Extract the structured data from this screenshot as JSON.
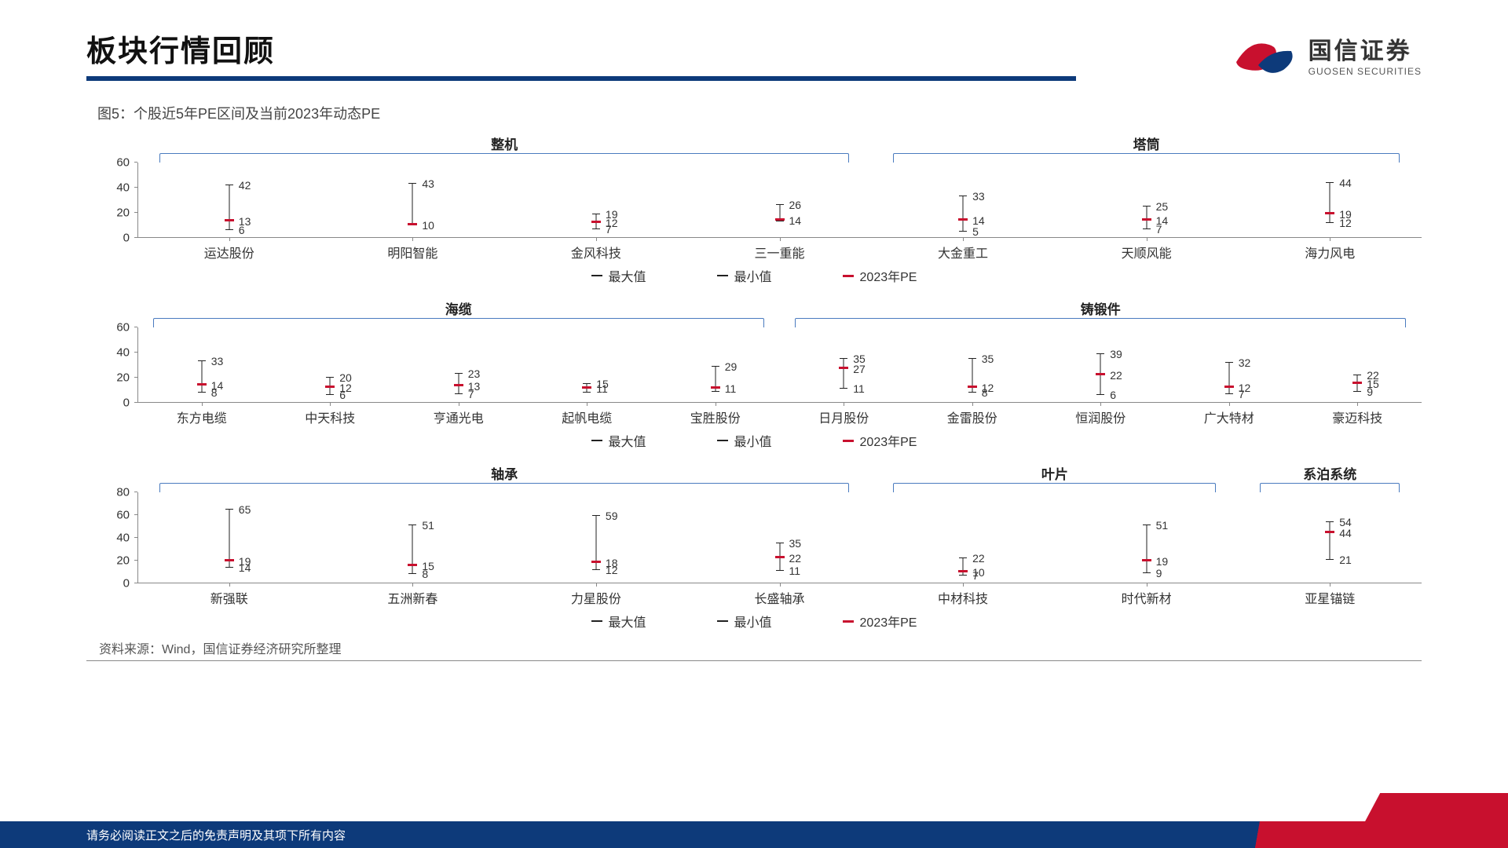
{
  "meta": {
    "title": "板块行情回顾",
    "subtitle": "图5：个股近5年PE区间及当前2023年动态PE",
    "source": "资料来源：Wind，国信证券经济研究所整理",
    "footer": "请务必阅读正文之后的免责声明及其项下所有内容",
    "brand_cn": "国信证券",
    "brand_en": "GUOSEN SECURITIES",
    "colors": {
      "accent": "#0d3a7a",
      "pe": "#c8102e",
      "axis": "#888888"
    }
  },
  "legend": {
    "max": "最大值",
    "min": "最小值",
    "pe": "2023年PE"
  },
  "panels": [
    {
      "ylim": [
        0,
        60
      ],
      "ytick_step": 20,
      "tall": false,
      "groups": [
        {
          "label": "整机",
          "from": 0,
          "to": 3
        },
        {
          "label": "塔筒",
          "from": 4,
          "to": 6
        }
      ],
      "stocks": [
        {
          "name": "运达股份",
          "max": 42,
          "min": 6,
          "pe": 13
        },
        {
          "name": "明阳智能",
          "max": 43,
          "min": 10,
          "pe": 10,
          "min_hidden": true
        },
        {
          "name": "金风科技",
          "max": 19,
          "min": 7,
          "pe": 12
        },
        {
          "name": "三一重能",
          "max": 26,
          "min": 13,
          "pe": 14,
          "min_hidden": true
        },
        {
          "name": "大金重工",
          "max": 33,
          "min": 5,
          "pe": 14
        },
        {
          "name": "天顺风能",
          "max": 25,
          "min": 7,
          "pe": 14
        },
        {
          "name": "海力风电",
          "max": 44,
          "min": 12,
          "pe": 19
        }
      ]
    },
    {
      "ylim": [
        0,
        60
      ],
      "ytick_step": 20,
      "tall": false,
      "groups": [
        {
          "label": "海缆",
          "from": 0,
          "to": 4
        },
        {
          "label": "铸锻件",
          "from": 5,
          "to": 9
        }
      ],
      "stocks": [
        {
          "name": "东方电缆",
          "max": 33,
          "min": 8,
          "pe": 14
        },
        {
          "name": "中天科技",
          "max": 20,
          "min": 6,
          "pe": 12
        },
        {
          "name": "亨通光电",
          "max": 23,
          "min": 7,
          "pe": 13
        },
        {
          "name": "起帆电缆",
          "max": 15,
          "min": 8,
          "pe": 11,
          "min_hidden": true
        },
        {
          "name": "宝胜股份",
          "max": 29,
          "min": 9,
          "pe": 11,
          "min_hidden": true
        },
        {
          "name": "日月股份",
          "max": 35,
          "min": 11,
          "pe": 27
        },
        {
          "name": "金雷股份",
          "max": 35,
          "min": 8,
          "pe": 12
        },
        {
          "name": "恒润股份",
          "max": 39,
          "min": 6,
          "pe": 22
        },
        {
          "name": "广大特材",
          "max": 32,
          "min": 7,
          "pe": 12
        },
        {
          "name": "豪迈科技",
          "max": 22,
          "min": 9,
          "pe": 15
        }
      ]
    },
    {
      "ylim": [
        0,
        80
      ],
      "ytick_step": 20,
      "tall": true,
      "groups": [
        {
          "label": "轴承",
          "from": 0,
          "to": 3
        },
        {
          "label": "叶片",
          "from": 4,
          "to": 5
        },
        {
          "label": "系泊系统",
          "from": 6,
          "to": 6
        }
      ],
      "stocks": [
        {
          "name": "新强联",
          "max": 65,
          "min": 14,
          "pe": 19
        },
        {
          "name": "五洲新春",
          "max": 51,
          "min": 8,
          "pe": 15
        },
        {
          "name": "力星股份",
          "max": 59,
          "min": 12,
          "pe": 18
        },
        {
          "name": "长盛轴承",
          "max": 35,
          "min": 11,
          "pe": 22
        },
        {
          "name": "中材科技",
          "max": 22,
          "min": 7,
          "pe": 10
        },
        {
          "name": "时代新材",
          "max": 51,
          "min": 9,
          "pe": 19
        },
        {
          "name": "亚星锚链",
          "max": 54,
          "min": 21,
          "pe": 44
        }
      ]
    }
  ]
}
